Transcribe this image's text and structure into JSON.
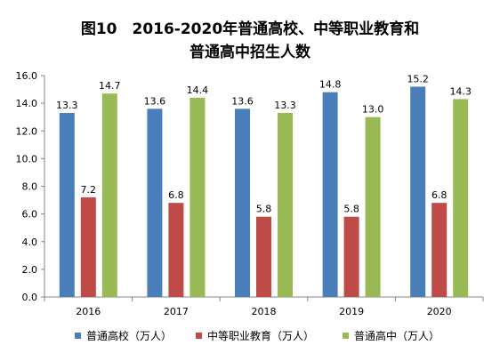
{
  "title": {
    "line1": "图10　2016-2020年普通高校、中等职业教育和",
    "line2": "普通高中招生人数"
  },
  "chart_data": {
    "type": "bar",
    "categories": [
      "2016",
      "2017",
      "2018",
      "2019",
      "2020"
    ],
    "series": [
      {
        "name": "普通高校（万人）",
        "color": "#4A7EBB",
        "values": [
          13.3,
          13.6,
          13.6,
          14.8,
          15.2
        ]
      },
      {
        "name": "中等职业教育（万人）",
        "color": "#BE4B48",
        "values": [
          7.2,
          6.8,
          5.8,
          5.8,
          6.8
        ]
      },
      {
        "name": "普通高中（万人）",
        "color": "#98B954",
        "values": [
          14.7,
          14.4,
          13.3,
          13.0,
          14.3
        ]
      }
    ],
    "ylim": [
      0,
      16
    ],
    "yticks": [
      "0.0",
      "2.0",
      "4.0",
      "6.0",
      "8.0",
      "10.0",
      "12.0",
      "14.0",
      "16.0"
    ],
    "grid": false,
    "legend": "bottom"
  }
}
